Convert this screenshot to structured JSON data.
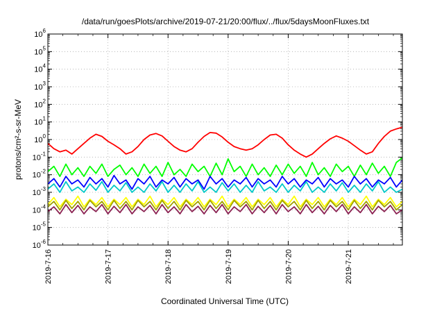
{
  "chart_data": {
    "type": "line",
    "title": "/data/run/goesPlots/archive/2019-07-21/20:00/flux/../flux/5daysMoonFluxes.txt",
    "xlabel": "Coordinated Universal Time (UTC)",
    "ylabel": "protons/cm²-s-sr-MeV",
    "y_scale": "log",
    "ylim_exponent": [
      -6,
      6
    ],
    "y_tick_base": "10",
    "y_tick_exponents": [
      "-6",
      "-5",
      "-4",
      "-3",
      "-2",
      "-1",
      "0",
      "1",
      "2",
      "3",
      "4",
      "5",
      "6"
    ],
    "x_tick_labels": [
      "2019-7-16",
      "2019-7-17",
      "2019-7-18",
      "2019-7-19",
      "2019-7-20",
      "2019-7-21"
    ],
    "x_range_days": [
      0,
      5.9
    ],
    "x_tick_days": [
      0,
      1,
      2,
      3,
      4,
      5
    ],
    "grid": true,
    "series": [
      {
        "color": "#ff0000",
        "x": [
          0.0,
          0.1,
          0.2,
          0.3,
          0.4,
          0.5,
          0.6,
          0.7,
          0.8,
          0.9,
          1.0,
          1.1,
          1.2,
          1.3,
          1.4,
          1.5,
          1.6,
          1.7,
          1.8,
          1.9,
          2.0,
          2.1,
          2.2,
          2.3,
          2.4,
          2.5,
          2.6,
          2.7,
          2.8,
          2.9,
          3.0,
          3.1,
          3.2,
          3.3,
          3.4,
          3.5,
          3.6,
          3.7,
          3.8,
          3.9,
          4.0,
          4.1,
          4.2,
          4.3,
          4.4,
          4.5,
          4.6,
          4.7,
          4.8,
          4.9,
          5.0,
          5.1,
          5.2,
          5.3,
          5.4,
          5.5,
          5.6,
          5.7,
          5.8,
          5.9
        ],
        "y": [
          0.6,
          0.3,
          0.2,
          0.25,
          0.15,
          0.3,
          0.6,
          1.2,
          2.0,
          1.5,
          0.8,
          0.5,
          0.3,
          0.15,
          0.2,
          0.4,
          1.0,
          1.8,
          2.2,
          1.6,
          0.8,
          0.4,
          0.25,
          0.2,
          0.3,
          0.7,
          1.5,
          2.5,
          2.3,
          1.4,
          0.7,
          0.4,
          0.3,
          0.25,
          0.3,
          0.5,
          1.0,
          1.8,
          2.0,
          1.2,
          0.5,
          0.25,
          0.15,
          0.1,
          0.15,
          0.3,
          0.6,
          1.1,
          1.6,
          1.2,
          0.8,
          0.45,
          0.25,
          0.15,
          0.2,
          0.6,
          1.5,
          3.0,
          4.0,
          5.0
        ]
      },
      {
        "color": "#00ff00",
        "x": [
          0.0,
          0.1,
          0.2,
          0.3,
          0.4,
          0.5,
          0.6,
          0.7,
          0.8,
          0.9,
          1.0,
          1.1,
          1.2,
          1.3,
          1.4,
          1.5,
          1.6,
          1.7,
          1.8,
          1.9,
          2.0,
          2.1,
          2.2,
          2.3,
          2.4,
          2.5,
          2.6,
          2.7,
          2.8,
          2.9,
          3.0,
          3.1,
          3.2,
          3.3,
          3.4,
          3.5,
          3.6,
          3.7,
          3.8,
          3.9,
          4.0,
          4.1,
          4.2,
          4.3,
          4.4,
          4.5,
          4.6,
          4.7,
          4.8,
          4.9,
          5.0,
          5.1,
          5.2,
          5.3,
          5.4,
          5.5,
          5.6,
          5.7,
          5.8,
          5.9
        ],
        "y": [
          0.015,
          0.03,
          0.008,
          0.04,
          0.01,
          0.025,
          0.008,
          0.03,
          0.012,
          0.04,
          0.008,
          0.02,
          0.035,
          0.01,
          0.025,
          0.008,
          0.04,
          0.012,
          0.03,
          0.008,
          0.05,
          0.01,
          0.02,
          0.008,
          0.04,
          0.015,
          0.03,
          0.008,
          0.045,
          0.01,
          0.08,
          0.015,
          0.03,
          0.008,
          0.04,
          0.01,
          0.025,
          0.008,
          0.035,
          0.01,
          0.04,
          0.012,
          0.03,
          0.008,
          0.05,
          0.01,
          0.025,
          0.008,
          0.04,
          0.015,
          0.03,
          0.008,
          0.035,
          0.01,
          0.045,
          0.012,
          0.03,
          0.008,
          0.05,
          0.09
        ]
      },
      {
        "color": "#00c8c8",
        "x": [
          0.0,
          0.1,
          0.2,
          0.3,
          0.4,
          0.5,
          0.6,
          0.7,
          0.8,
          0.9,
          1.0,
          1.1,
          1.2,
          1.3,
          1.4,
          1.5,
          1.6,
          1.7,
          1.8,
          1.9,
          2.0,
          2.1,
          2.2,
          2.3,
          2.4,
          2.5,
          2.6,
          2.7,
          2.8,
          2.9,
          3.0,
          3.1,
          3.2,
          3.3,
          3.4,
          3.5,
          3.6,
          3.7,
          3.8,
          3.9,
          4.0,
          4.1,
          4.2,
          4.3,
          4.4,
          4.5,
          4.6,
          4.7,
          4.8,
          4.9,
          5.0,
          5.1,
          5.2,
          5.3,
          5.4,
          5.5,
          5.6,
          5.7,
          5.8,
          5.9
        ],
        "y": [
          0.0015,
          0.003,
          0.001,
          0.004,
          0.0012,
          0.002,
          0.001,
          0.003,
          0.0013,
          0.004,
          0.001,
          0.0025,
          0.0012,
          0.0035,
          0.001,
          0.002,
          0.001,
          0.003,
          0.0012,
          0.004,
          0.001,
          0.0025,
          0.001,
          0.003,
          0.0012,
          0.004,
          0.001,
          0.002,
          0.001,
          0.0035,
          0.0012,
          0.003,
          0.001,
          0.0025,
          0.001,
          0.004,
          0.0012,
          0.002,
          0.001,
          0.003,
          0.001,
          0.0025,
          0.0012,
          0.004,
          0.001,
          0.002,
          0.001,
          0.003,
          0.0012,
          0.0035,
          0.001,
          0.0025,
          0.001,
          0.003,
          0.0012,
          0.004,
          0.001,
          0.002,
          0.001,
          0.0015
        ]
      },
      {
        "color": "#0000ff",
        "x": [
          0.0,
          0.1,
          0.2,
          0.3,
          0.4,
          0.5,
          0.6,
          0.7,
          0.8,
          0.9,
          1.0,
          1.1,
          1.2,
          1.3,
          1.4,
          1.5,
          1.6,
          1.7,
          1.8,
          1.9,
          2.0,
          2.1,
          2.2,
          2.3,
          2.4,
          2.5,
          2.6,
          2.7,
          2.8,
          2.9,
          3.0,
          3.1,
          3.2,
          3.3,
          3.4,
          3.5,
          3.6,
          3.7,
          3.8,
          3.9,
          4.0,
          4.1,
          4.2,
          4.3,
          4.4,
          4.5,
          4.6,
          4.7,
          4.8,
          4.9,
          5.0,
          5.1,
          5.2,
          5.3,
          5.4,
          5.5,
          5.6,
          5.7,
          5.8,
          5.9
        ],
        "y": [
          0.003,
          0.006,
          0.002,
          0.008,
          0.003,
          0.005,
          0.002,
          0.007,
          0.003,
          0.006,
          0.002,
          0.009,
          0.003,
          0.005,
          0.0015,
          0.006,
          0.003,
          0.008,
          0.002,
          0.005,
          0.003,
          0.007,
          0.002,
          0.006,
          0.003,
          0.005,
          0.0015,
          0.008,
          0.003,
          0.006,
          0.002,
          0.005,
          0.003,
          0.007,
          0.002,
          0.006,
          0.003,
          0.005,
          0.002,
          0.008,
          0.003,
          0.006,
          0.002,
          0.005,
          0.003,
          0.007,
          0.002,
          0.006,
          0.003,
          0.005,
          0.002,
          0.008,
          0.003,
          0.006,
          0.002,
          0.005,
          0.003,
          0.007,
          0.002,
          0.005
        ]
      },
      {
        "color": "#ffff00",
        "x": [
          0.0,
          0.1,
          0.2,
          0.3,
          0.4,
          0.5,
          0.6,
          0.7,
          0.8,
          0.9,
          1.0,
          1.1,
          1.2,
          1.3,
          1.4,
          1.5,
          1.6,
          1.7,
          1.8,
          1.9,
          2.0,
          2.1,
          2.2,
          2.3,
          2.4,
          2.5,
          2.6,
          2.7,
          2.8,
          2.9,
          3.0,
          3.1,
          3.2,
          3.3,
          3.4,
          3.5,
          3.6,
          3.7,
          3.8,
          3.9,
          4.0,
          4.1,
          4.2,
          4.3,
          4.4,
          4.5,
          4.6,
          4.7,
          4.8,
          4.9,
          5.0,
          5.1,
          5.2,
          5.3,
          5.4,
          5.5,
          5.6,
          5.7,
          5.8,
          5.9
        ],
        "y": [
          0.0002,
          0.0005,
          0.00015,
          0.0004,
          0.0002,
          0.0006,
          0.00015,
          0.0004,
          0.0002,
          0.0005,
          0.00015,
          0.0004,
          0.0002,
          0.0005,
          0.00015,
          0.0004,
          0.0002,
          0.0006,
          0.00015,
          0.0004,
          0.0002,
          0.0005,
          0.00015,
          0.0004,
          0.0002,
          0.0005,
          0.00015,
          0.0004,
          0.0002,
          0.0006,
          0.00015,
          0.0004,
          0.0002,
          0.0005,
          0.00015,
          0.0004,
          0.0002,
          0.0005,
          0.00015,
          0.0004,
          0.0002,
          0.0006,
          0.00015,
          0.0004,
          0.0002,
          0.0005,
          0.00015,
          0.0004,
          0.0002,
          0.0005,
          0.00015,
          0.0004,
          0.0002,
          0.0006,
          0.00015,
          0.0004,
          0.0002,
          0.0005,
          0.00015,
          0.0003
        ]
      },
      {
        "color": "#a0a000",
        "x": [
          0.0,
          0.1,
          0.2,
          0.3,
          0.4,
          0.5,
          0.6,
          0.7,
          0.8,
          0.9,
          1.0,
          1.1,
          1.2,
          1.3,
          1.4,
          1.5,
          1.6,
          1.7,
          1.8,
          1.9,
          2.0,
          2.1,
          2.2,
          2.3,
          2.4,
          2.5,
          2.6,
          2.7,
          2.8,
          2.9,
          3.0,
          3.1,
          3.2,
          3.3,
          3.4,
          3.5,
          3.6,
          3.7,
          3.8,
          3.9,
          4.0,
          4.1,
          4.2,
          4.3,
          4.4,
          4.5,
          4.6,
          4.7,
          4.8,
          4.9,
          5.0,
          5.1,
          5.2,
          5.3,
          5.4,
          5.5,
          5.6,
          5.7,
          5.8,
          5.9
        ],
        "y": [
          0.00015,
          0.0003,
          0.0001,
          0.00035,
          0.00012,
          0.0003,
          0.0001,
          0.00035,
          0.00015,
          0.0003,
          0.0001,
          0.00035,
          0.00012,
          0.0003,
          0.0001,
          0.00035,
          0.00015,
          0.0003,
          0.0001,
          0.00035,
          0.00012,
          0.0003,
          0.0001,
          0.00035,
          0.00015,
          0.0003,
          0.0001,
          0.00035,
          0.00012,
          0.0003,
          0.0001,
          0.00035,
          0.00015,
          0.0003,
          0.0001,
          0.00035,
          0.00012,
          0.0003,
          0.0001,
          0.00035,
          0.00015,
          0.0003,
          0.0001,
          0.00035,
          0.00012,
          0.0003,
          0.0001,
          0.00035,
          0.00015,
          0.0003,
          0.0001,
          0.00035,
          0.00012,
          0.0003,
          0.0001,
          0.00035,
          0.00015,
          0.0003,
          0.0001,
          0.0002
        ]
      },
      {
        "color": "#8b2252",
        "x": [
          0.0,
          0.1,
          0.2,
          0.3,
          0.4,
          0.5,
          0.6,
          0.7,
          0.8,
          0.9,
          1.0,
          1.1,
          1.2,
          1.3,
          1.4,
          1.5,
          1.6,
          1.7,
          1.8,
          1.9,
          2.0,
          2.1,
          2.2,
          2.3,
          2.4,
          2.5,
          2.6,
          2.7,
          2.8,
          2.9,
          3.0,
          3.1,
          3.2,
          3.3,
          3.4,
          3.5,
          3.6,
          3.7,
          3.8,
          3.9,
          4.0,
          4.1,
          4.2,
          4.3,
          4.4,
          4.5,
          4.6,
          4.7,
          4.8,
          4.9,
          5.0,
          5.1,
          5.2,
          5.3,
          5.4,
          5.5,
          5.6,
          5.7,
          5.8,
          5.9
        ],
        "y": [
          8e-05,
          0.00015,
          6e-05,
          0.0002,
          7e-05,
          0.00018,
          6e-05,
          0.00015,
          8e-05,
          0.0002,
          6e-05,
          0.00016,
          7e-05,
          0.0002,
          6e-05,
          0.00015,
          8e-05,
          0.00018,
          6e-05,
          0.0002,
          7e-05,
          0.00015,
          6e-05,
          0.0002,
          8e-05,
          0.00016,
          6e-05,
          0.00018,
          7e-05,
          0.0002,
          6e-05,
          0.00015,
          8e-05,
          0.0002,
          6e-05,
          0.00016,
          7e-05,
          0.00018,
          6e-05,
          0.0002,
          8e-05,
          0.00015,
          6e-05,
          0.0002,
          7e-05,
          0.00016,
          6e-05,
          0.00018,
          8e-05,
          0.0002,
          6e-05,
          0.00015,
          7e-05,
          0.0002,
          6e-05,
          0.00016,
          8e-05,
          0.00018,
          6e-05,
          0.0001
        ]
      }
    ]
  }
}
